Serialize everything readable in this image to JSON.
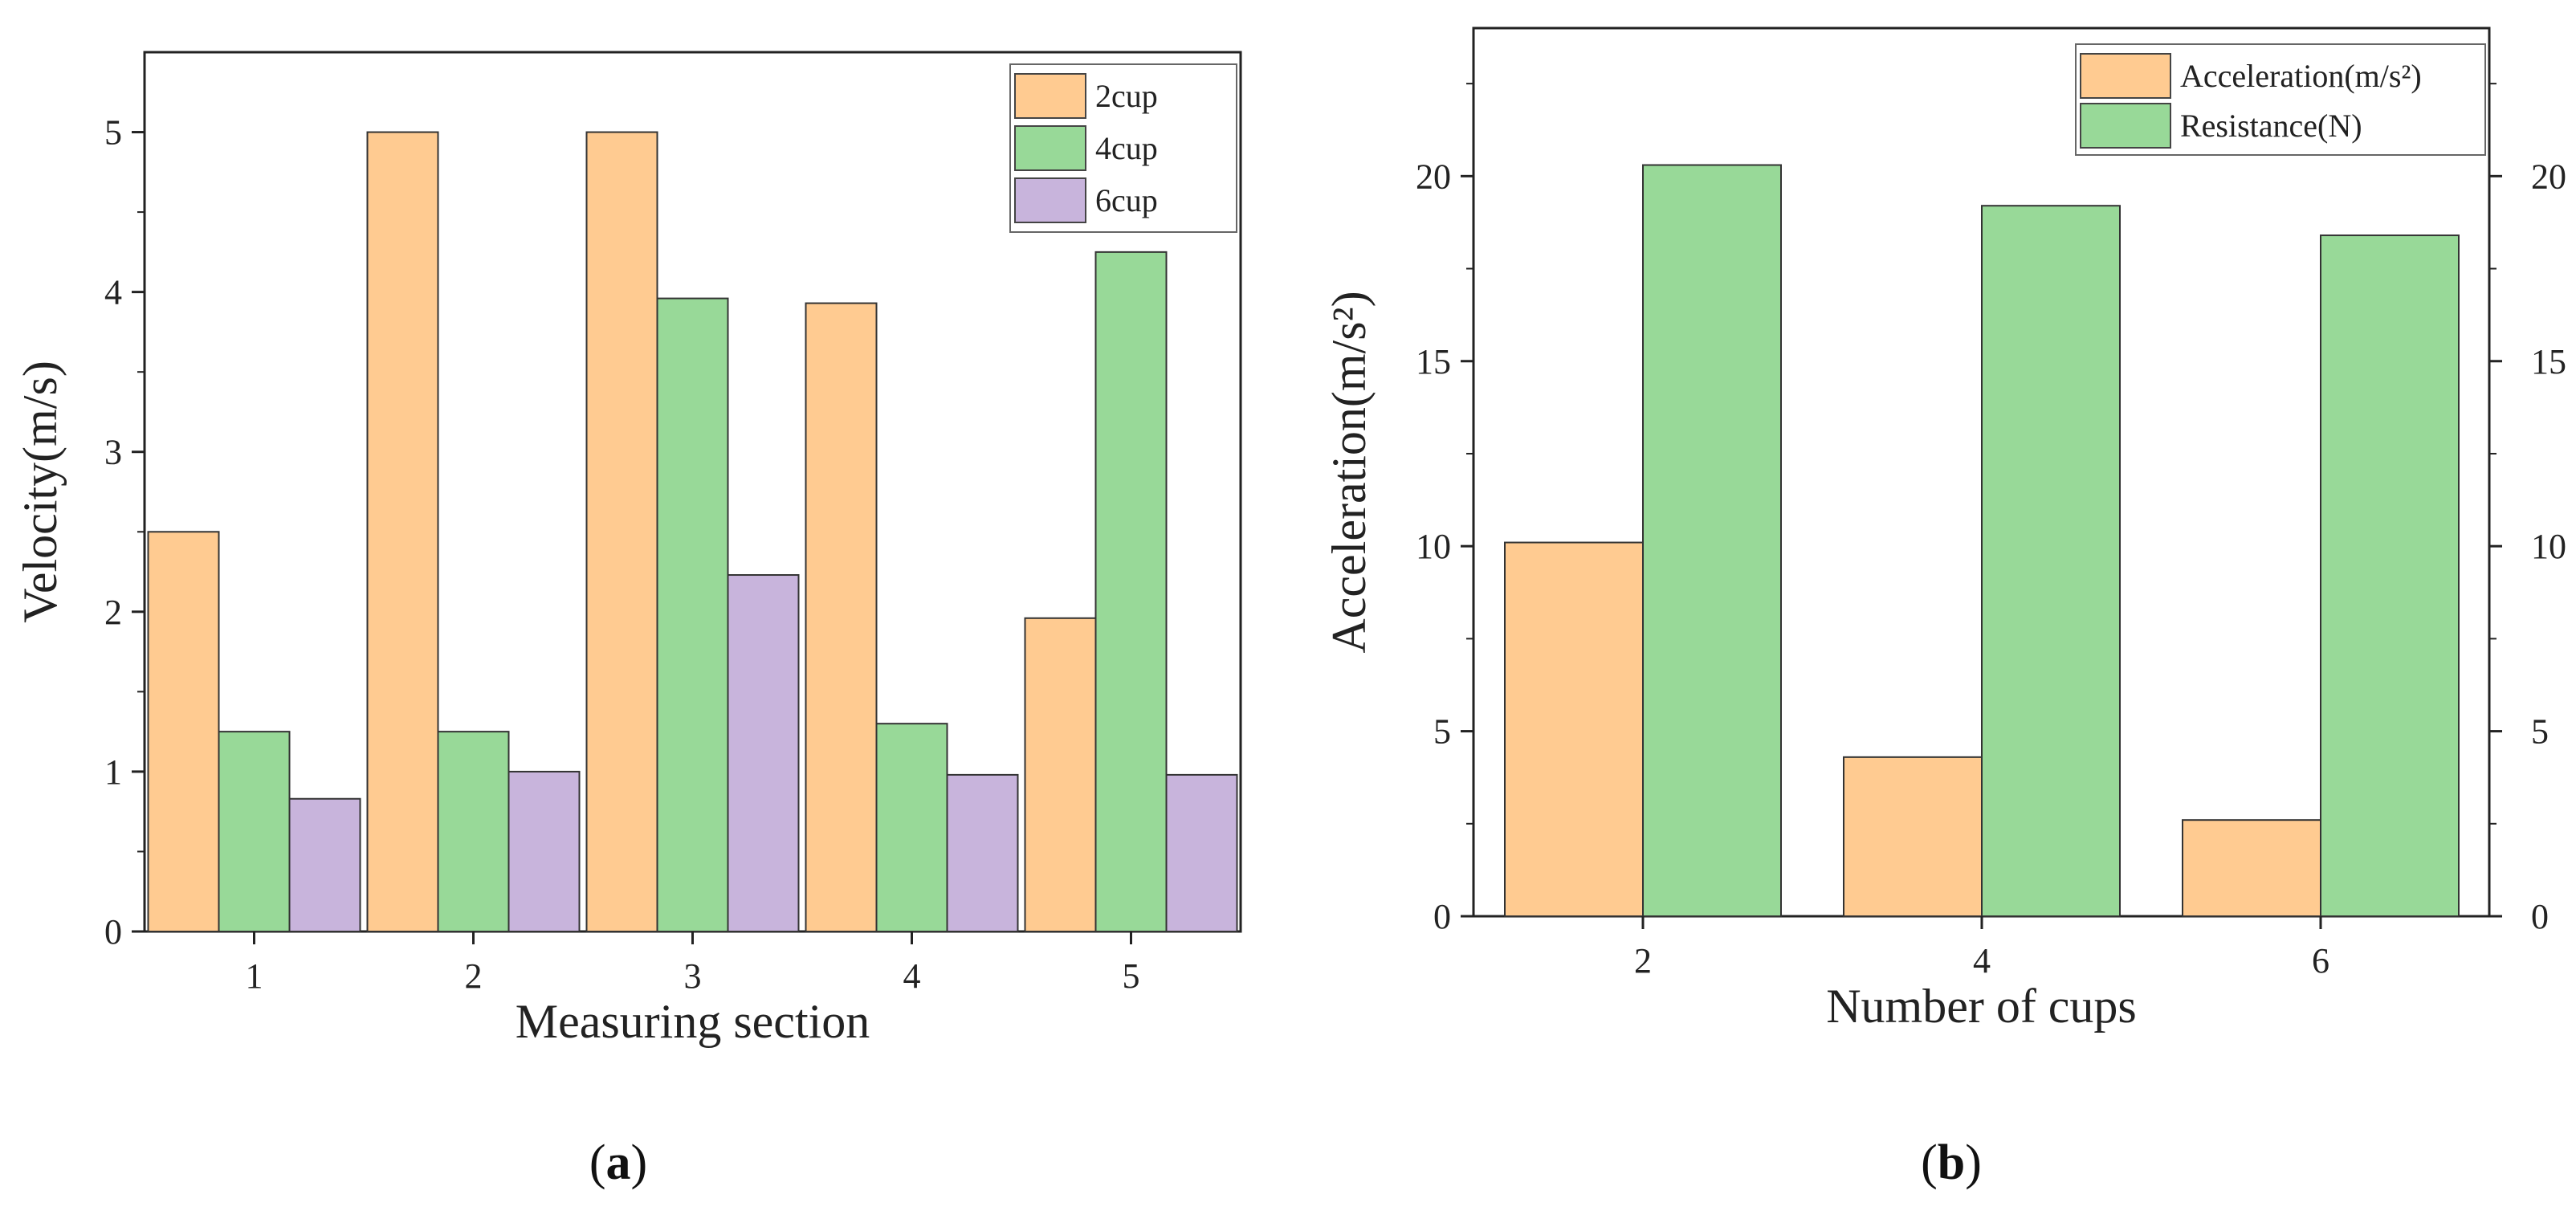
{
  "chart_data": [
    {
      "id": "a",
      "type": "bar",
      "caption_letter": "a",
      "xlabel": "Measuring section",
      "ylabel": "Velocity(m/s)",
      "categories": [
        "1",
        "2",
        "3",
        "4",
        "5"
      ],
      "ylim": [
        0,
        5.5
      ],
      "yticks": [
        "0",
        "1",
        "2",
        "3",
        "4",
        "5"
      ],
      "legend_position": "top-right",
      "series": [
        {
          "name": "2cup",
          "color": "#FFCB91",
          "values": [
            2.5,
            5.0,
            5.0,
            3.93,
            1.96
          ]
        },
        {
          "name": "4cup",
          "color": "#98D998",
          "values": [
            1.25,
            1.25,
            3.96,
            1.3,
            4.25
          ]
        },
        {
          "name": "6cup",
          "color": "#C8B4DC",
          "values": [
            0.83,
            1.0,
            2.23,
            0.98,
            0.98
          ]
        }
      ]
    },
    {
      "id": "b",
      "type": "bar",
      "caption_letter": "b",
      "xlabel": "Number of  cups",
      "ylabel": "Acceleration(m/s²)",
      "categories": [
        "2",
        "4",
        "6"
      ],
      "ylim": [
        0,
        24
      ],
      "yticks": [
        "0",
        "5",
        "10",
        "15",
        "20"
      ],
      "y2ticks": [
        "0",
        "5",
        "10",
        "15",
        "20"
      ],
      "legend_position": "top-right",
      "series": [
        {
          "name": "Acceleration(m/s²)",
          "color": "#FFCB91",
          "values": [
            10.1,
            4.3,
            2.6
          ]
        },
        {
          "name": "Resistance(N)",
          "color": "#98D998",
          "values": [
            20.3,
            19.2,
            18.4
          ]
        }
      ]
    }
  ]
}
